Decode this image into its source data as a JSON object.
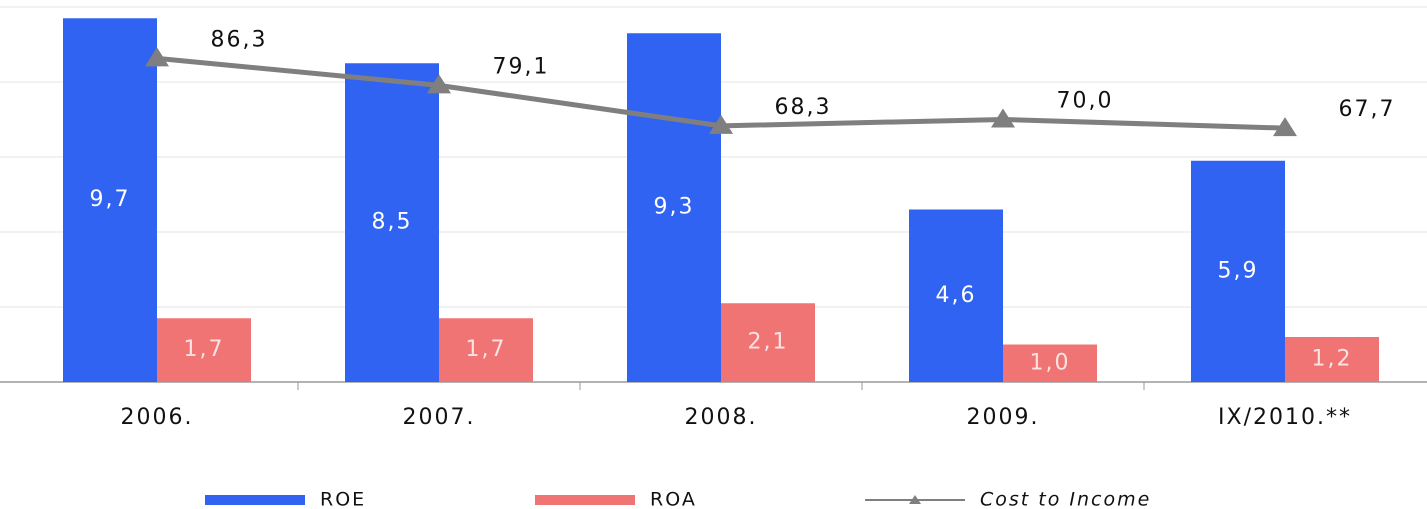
{
  "chart_data": {
    "type": "bar",
    "categories": [
      "2006.",
      "2007.",
      "2008.",
      "2009.",
      "IX/2010.**"
    ],
    "series": [
      {
        "name": "ROE",
        "color": "#3163f2",
        "values": [
          9.7,
          8.5,
          9.3,
          4.6,
          5.9
        ],
        "value_labels": [
          "9,7",
          "8,5",
          "9,3",
          "4,6",
          "5,9"
        ]
      },
      {
        "name": "ROA",
        "color": "#f07474",
        "values": [
          1.7,
          1.7,
          2.1,
          1.0,
          1.2
        ],
        "value_labels": [
          "1,7",
          "1,7",
          "2,1",
          "1,0",
          "1,2"
        ]
      },
      {
        "name": "Cost to Income",
        "type": "line",
        "axis": "y2",
        "color": "#7f7f7f",
        "values": [
          86.3,
          79.1,
          68.3,
          70.0,
          67.7
        ],
        "value_labels": [
          "86,3",
          "79,1",
          "68,3",
          "70,0",
          "67,7"
        ]
      }
    ],
    "ylim": [
      0,
      10
    ],
    "yticks": [
      0,
      2,
      4,
      6,
      8,
      10
    ],
    "y2lim": [
      0,
      100
    ],
    "grid": true,
    "legend": "bottom"
  }
}
